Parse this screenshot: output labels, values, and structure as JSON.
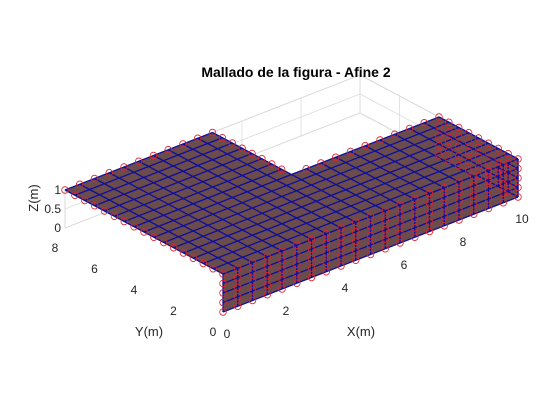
{
  "chart_data": {
    "type": "mesh3d",
    "title": "Mallado de la figura - Afine 2",
    "xlabel": "X(m)",
    "ylabel": "Y(m)",
    "zlabel": "Z(m)",
    "xlim": [
      0,
      10
    ],
    "ylim": [
      0,
      8
    ],
    "zlim": [
      0,
      1
    ],
    "x_ticks": [
      "0",
      "2",
      "4",
      "6",
      "8",
      "10"
    ],
    "y_ticks": [
      "0",
      "2",
      "4",
      "6",
      "8"
    ],
    "z_ticks": [
      "0",
      "0.5",
      "1"
    ],
    "grid": true,
    "geometry": {
      "shape": "L-shaped slab",
      "base_region": {
        "x": [
          0,
          10
        ],
        "y": [
          0,
          4
        ]
      },
      "wing_region": {
        "x": [
          0,
          5
        ],
        "y": [
          4,
          8
        ]
      },
      "z": [
        0,
        1
      ]
    },
    "mesh": {
      "spacing_xy": 0.5,
      "z_layers": 4,
      "face_color": "#6b4c4c",
      "edge_color": "#0f0f9a",
      "node_marker": "circle",
      "node_color": "#e0202a"
    }
  }
}
